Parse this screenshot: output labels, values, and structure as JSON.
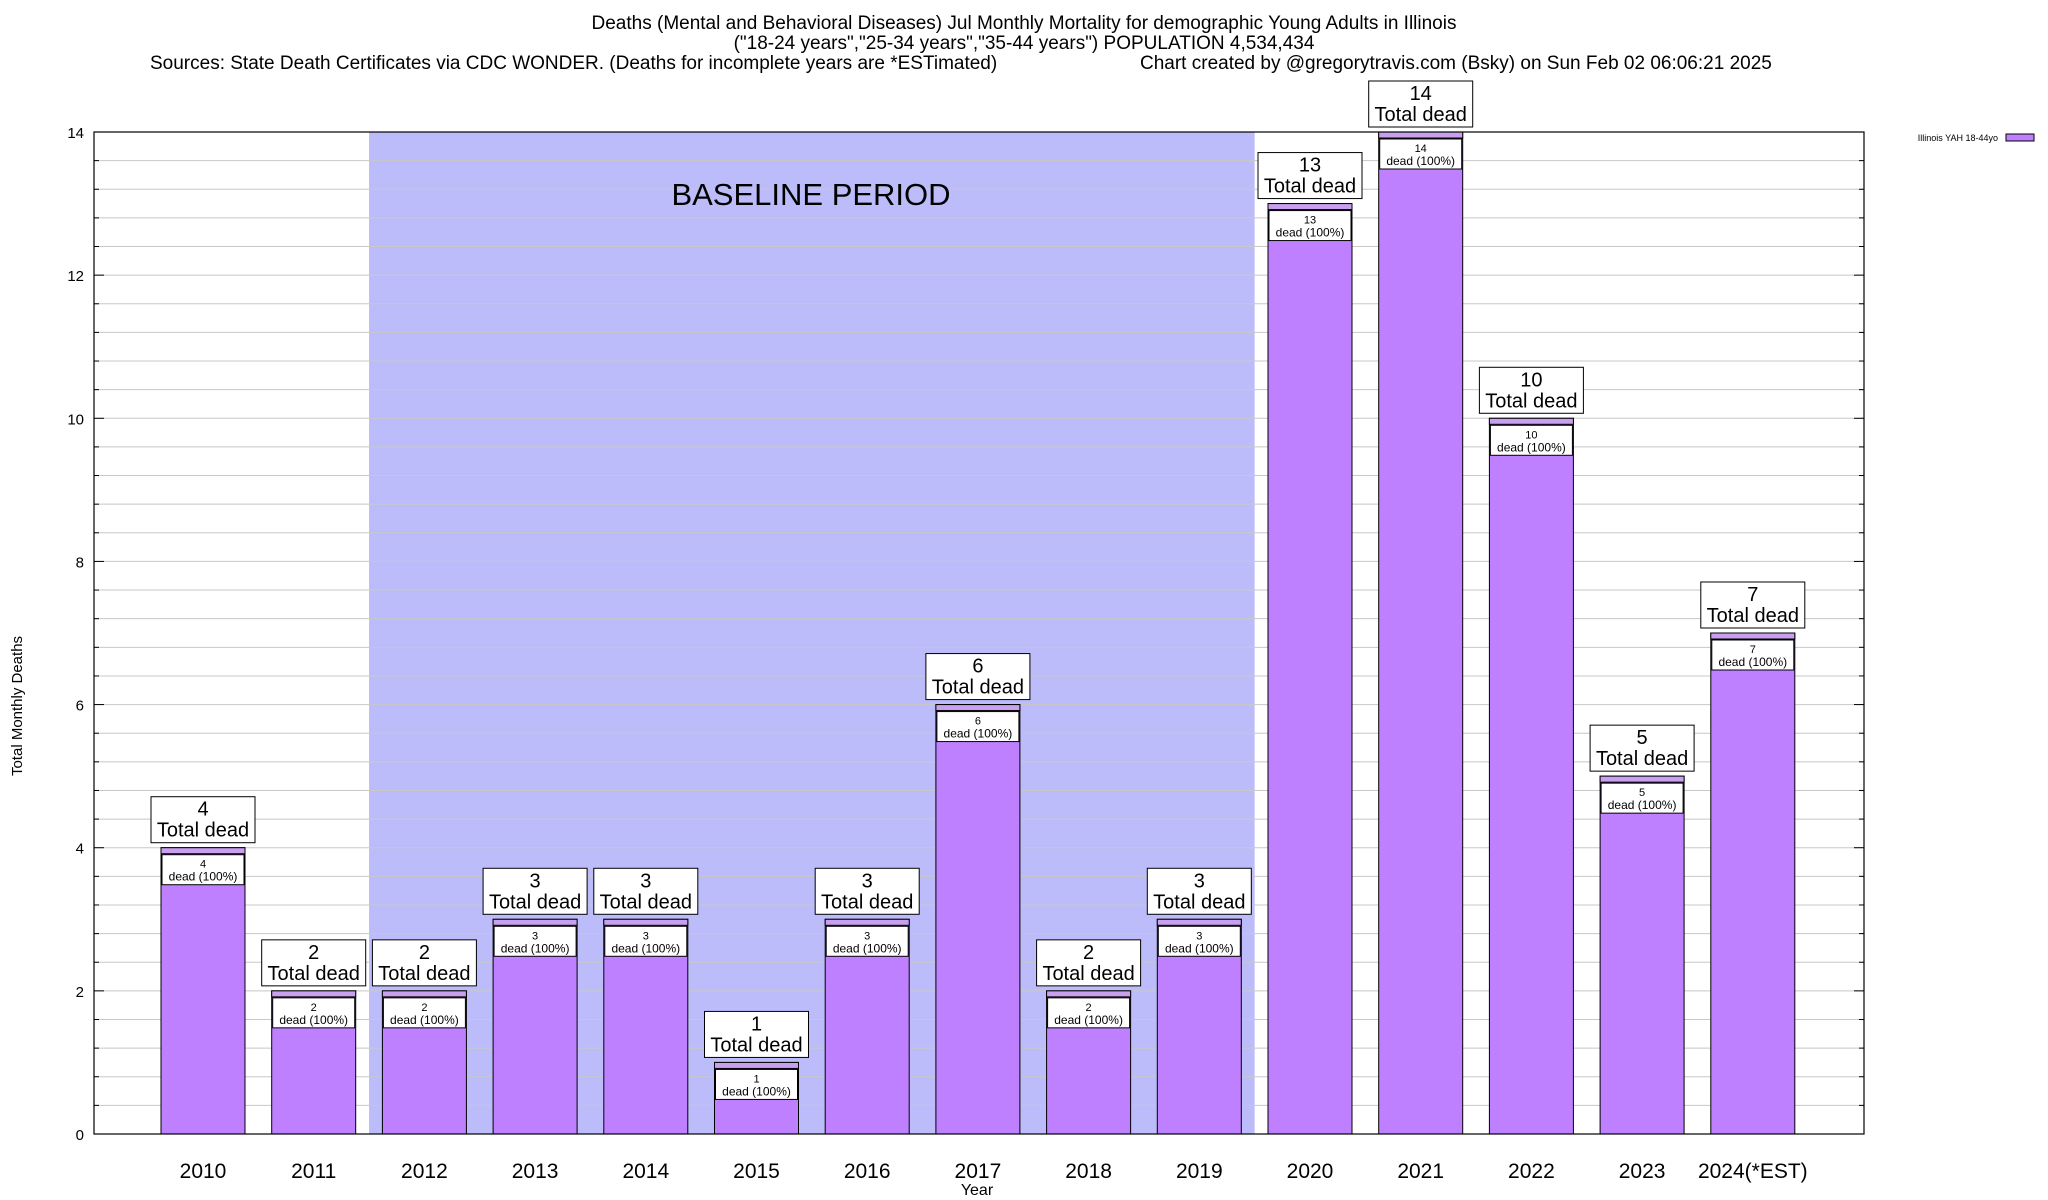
{
  "titles": {
    "line1": "Deaths (Mental and Behavioral Diseases) Jul Monthly Mortality for demographic Young Adults in Illinois",
    "line2": "(\"18-24 years\",\"25-34 years\",\"35-44 years\") POPULATION 4,534,434",
    "sources": "Sources: State Death Certificates via CDC WONDER. (Deaths for incomplete years are *ESTimated)",
    "credit": "Chart created by @gregorytravis.com (Bsky) on Sun Feb 02 06:06:21 2025"
  },
  "chart_data": {
    "type": "bar",
    "xlabel": "Year",
    "ylabel": "Total Monthly Deaths",
    "ylim": [
      0,
      14
    ],
    "yticks": [
      0,
      2,
      4,
      6,
      8,
      10,
      12,
      14
    ],
    "grid": true,
    "legend_position": "top-right",
    "baseline_label": "BASELINE PERIOD",
    "baseline_range": [
      "2012",
      "2019"
    ],
    "total_label": "Total dead",
    "inner_label": "dead (100%)",
    "categories": [
      "2010",
      "2011",
      "2012",
      "2013",
      "2014",
      "2015",
      "2016",
      "2017",
      "2018",
      "2019",
      "2020",
      "2021",
      "2022",
      "2023",
      "2024(*EST)"
    ],
    "series": [
      {
        "name": "Illinois YAH 18-44yo",
        "color": "#bf80ff",
        "values": [
          4,
          2,
          2,
          3,
          3,
          1,
          3,
          6,
          2,
          3,
          13,
          14,
          10,
          5,
          7
        ]
      }
    ],
    "colors": {
      "bar": "#bf80ff",
      "bar_cap": "#c9a0f0",
      "baseline_fill": "#bcbcfb",
      "grid": "#c8c8c8"
    }
  }
}
